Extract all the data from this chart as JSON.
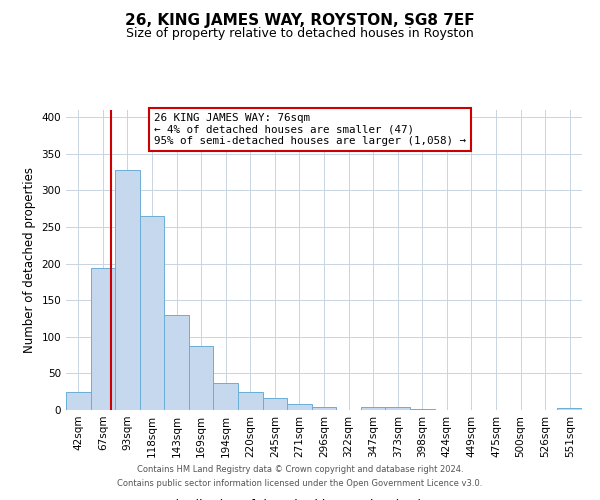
{
  "title": "26, KING JAMES WAY, ROYSTON, SG8 7EF",
  "subtitle": "Size of property relative to detached houses in Royston",
  "xlabel": "Distribution of detached houses by size in Royston",
  "ylabel": "Number of detached properties",
  "categories": [
    "42sqm",
    "67sqm",
    "93sqm",
    "118sqm",
    "143sqm",
    "169sqm",
    "194sqm",
    "220sqm",
    "245sqm",
    "271sqm",
    "296sqm",
    "322sqm",
    "347sqm",
    "373sqm",
    "398sqm",
    "424sqm",
    "449sqm",
    "475sqm",
    "500sqm",
    "526sqm",
    "551sqm"
  ],
  "values": [
    25,
    194,
    328,
    265,
    130,
    87,
    37,
    25,
    17,
    8,
    4,
    0,
    4,
    4,
    2,
    0,
    0,
    0,
    0,
    0,
    3
  ],
  "bar_color": "#c5d8ed",
  "bar_edge_color": "#6aaed6",
  "grid_color": "#c8d4e0",
  "background_color": "#ffffff",
  "annotation_line_color": "#cc0000",
  "annotation_line_xindex": 1.35,
  "annotation_text_line1": "26 KING JAMES WAY: 76sqm",
  "annotation_text_line2": "← 4% of detached houses are smaller (47)",
  "annotation_text_line3": "95% of semi-detached houses are larger (1,058) →",
  "annotation_box_color": "#ffffff",
  "annotation_box_edge_color": "#cc0000",
  "ylim": [
    0,
    410
  ],
  "yticks": [
    0,
    50,
    100,
    150,
    200,
    250,
    300,
    350,
    400
  ],
  "title_fontsize": 11,
  "subtitle_fontsize": 9,
  "ylabel_fontsize": 8.5,
  "xlabel_fontsize": 9,
  "tick_fontsize": 7.5,
  "footer_line1": "Contains HM Land Registry data © Crown copyright and database right 2024.",
  "footer_line2": "Contains public sector information licensed under the Open Government Licence v3.0."
}
